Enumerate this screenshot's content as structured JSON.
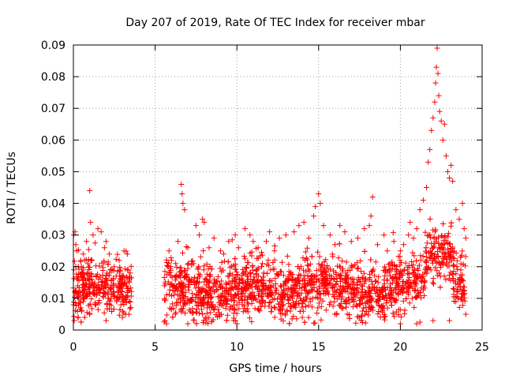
{
  "chart_data": {
    "type": "scatter",
    "title": "Day 207 of 2019, Rate Of TEC Index for receiver mbar",
    "xlabel": "GPS time / hours",
    "ylabel": "ROTI / TECUs",
    "xlim": [
      0,
      25
    ],
    "ylim": [
      0,
      0.09
    ],
    "x_ticks": [
      0,
      5,
      10,
      15,
      20,
      25
    ],
    "x_tick_labels": [
      "0",
      "5",
      "10",
      "15",
      "20",
      "25"
    ],
    "y_ticks": [
      0,
      0.01,
      0.02,
      0.03,
      0.04,
      0.05,
      0.06,
      0.07,
      0.08,
      0.09
    ],
    "y_tick_labels": [
      "0",
      "0.01",
      "0.02",
      "0.03",
      "0.04",
      "0.05",
      "0.06",
      "0.07",
      "0.08",
      "0.09"
    ],
    "grid": true,
    "marker": "+",
    "colors": {
      "points": "#ff0000",
      "grid": "#a0a0a0",
      "axes": "#000000"
    },
    "series": [
      {
        "points": [
          [
            0.02,
            0.03
          ],
          [
            0.1,
            0.031
          ],
          [
            0.15,
            0.027
          ],
          [
            0.2,
            0.025
          ],
          [
            0.3,
            0.02
          ],
          [
            0.45,
            0.022
          ],
          [
            0.6,
            0.024
          ],
          [
            0.8,
            0.028
          ],
          [
            1.0,
            0.044
          ],
          [
            1.05,
            0.034
          ],
          [
            1.2,
            0.03
          ],
          [
            1.5,
            0.032
          ],
          [
            1.7,
            0.031
          ],
          [
            1.9,
            0.026
          ],
          [
            2.0,
            0.028
          ],
          [
            2.2,
            0.024
          ],
          [
            2.5,
            0.02
          ],
          [
            2.8,
            0.022
          ],
          [
            3.1,
            0.025
          ],
          [
            3.3,
            0.024
          ],
          [
            0.05,
            0.003
          ],
          [
            0.3,
            0.004
          ],
          [
            1.0,
            0.005
          ],
          [
            2.0,
            0.003
          ],
          [
            3.0,
            0.004
          ],
          [
            3.4,
            0.005
          ],
          [
            5.6,
            0.003
          ],
          [
            5.7,
            0.002
          ],
          [
            5.8,
            0.02
          ],
          [
            5.85,
            0.025
          ],
          [
            6.0,
            0.022
          ],
          [
            6.4,
            0.028
          ],
          [
            6.6,
            0.046
          ],
          [
            6.65,
            0.043
          ],
          [
            6.7,
            0.04
          ],
          [
            6.8,
            0.038
          ],
          [
            7.0,
            0.026
          ],
          [
            7.5,
            0.033
          ],
          [
            7.7,
            0.03
          ],
          [
            7.9,
            0.035
          ],
          [
            8.0,
            0.034
          ],
          [
            8.3,
            0.026
          ],
          [
            8.6,
            0.029
          ],
          [
            9.0,
            0.025
          ],
          [
            9.5,
            0.028
          ],
          [
            9.9,
            0.03
          ],
          [
            10.1,
            0.026
          ],
          [
            10.5,
            0.032
          ],
          [
            10.8,
            0.03
          ],
          [
            11.0,
            0.028
          ],
          [
            11.3,
            0.026
          ],
          [
            11.8,
            0.028
          ],
          [
            12.0,
            0.031
          ],
          [
            12.3,
            0.025
          ],
          [
            12.6,
            0.029
          ],
          [
            13.0,
            0.03
          ],
          [
            13.5,
            0.031
          ],
          [
            13.8,
            0.033
          ],
          [
            14.1,
            0.034
          ],
          [
            14.4,
            0.029
          ],
          [
            14.7,
            0.036
          ],
          [
            14.8,
            0.039
          ],
          [
            15.0,
            0.043
          ],
          [
            15.1,
            0.04
          ],
          [
            15.3,
            0.033
          ],
          [
            15.7,
            0.03
          ],
          [
            16.0,
            0.027
          ],
          [
            16.3,
            0.033
          ],
          [
            16.6,
            0.031
          ],
          [
            17.0,
            0.028
          ],
          [
            17.4,
            0.029
          ],
          [
            17.8,
            0.032
          ],
          [
            18.1,
            0.033
          ],
          [
            18.2,
            0.036
          ],
          [
            18.3,
            0.042
          ],
          [
            18.6,
            0.027
          ],
          [
            19.0,
            0.03
          ],
          [
            19.2,
            0.025
          ],
          [
            19.6,
            0.028
          ],
          [
            20.0,
            0.025
          ],
          [
            20.2,
            0.027
          ],
          [
            20.5,
            0.03
          ],
          [
            20.6,
            0.034
          ],
          [
            20.8,
            0.029
          ],
          [
            21.0,
            0.032
          ],
          [
            21.2,
            0.038
          ],
          [
            21.4,
            0.041
          ],
          [
            21.6,
            0.045
          ],
          [
            21.7,
            0.053
          ],
          [
            21.8,
            0.057
          ],
          [
            21.9,
            0.063
          ],
          [
            22.0,
            0.067
          ],
          [
            22.1,
            0.072
          ],
          [
            22.15,
            0.078
          ],
          [
            22.2,
            0.083
          ],
          [
            22.25,
            0.089
          ],
          [
            22.3,
            0.081
          ],
          [
            22.35,
            0.074
          ],
          [
            22.4,
            0.069
          ],
          [
            22.5,
            0.066
          ],
          [
            22.6,
            0.06
          ],
          [
            22.7,
            0.065
          ],
          [
            22.8,
            0.055
          ],
          [
            22.9,
            0.05
          ],
          [
            23.0,
            0.048
          ],
          [
            23.1,
            0.052
          ],
          [
            23.2,
            0.047
          ],
          [
            23.4,
            0.038
          ],
          [
            23.6,
            0.035
          ],
          [
            23.8,
            0.04
          ],
          [
            23.9,
            0.032
          ],
          [
            24.0,
            0.029
          ],
          [
            7.0,
            0.002
          ],
          [
            9.8,
            0.003
          ],
          [
            10.0,
            0.002
          ],
          [
            14.0,
            0.004
          ],
          [
            16.0,
            0.005
          ],
          [
            17.5,
            0.004
          ],
          [
            19.0,
            0.004
          ],
          [
            20.0,
            0.002
          ],
          [
            21.0,
            0.002
          ],
          [
            22.0,
            0.003
          ],
          [
            23.0,
            0.003
          ],
          [
            24.0,
            0.005
          ]
        ]
      }
    ]
  }
}
